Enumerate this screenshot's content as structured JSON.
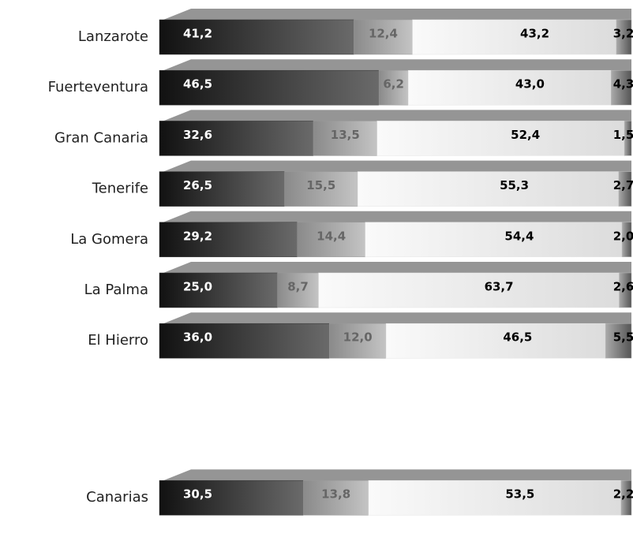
{
  "chart_data": {
    "type": "stacked-bar-horizontal",
    "categories": [
      "Lanzarote",
      "Fuerteventura",
      "Gran Canaria",
      "Tenerife",
      "La Gomera",
      "La Palma",
      "El Hierro",
      "Canarias"
    ],
    "xlim": [
      0,
      100
    ],
    "series": [
      {
        "color": "#3a3a3a",
        "values": [
          41.2,
          46.5,
          32.6,
          26.5,
          29.2,
          25.0,
          36.0,
          30.5
        ],
        "value_labels": [
          "41,2",
          "46,5",
          "32,6",
          "26,5",
          "29,2",
          "25,0",
          "36,0",
          "30,5"
        ]
      },
      {
        "color": "#9a9a9a",
        "values": [
          12.4,
          6.2,
          13.5,
          15.5,
          14.4,
          8.7,
          12.0,
          13.8
        ],
        "value_labels": [
          "12,4",
          "6,2",
          "13,5",
          "15,5",
          "14,4",
          "8,7",
          "12,0",
          "13,8"
        ]
      },
      {
        "color": "#e4e4e4",
        "values": [
          43.2,
          43.0,
          52.4,
          55.3,
          54.4,
          63.7,
          46.5,
          53.5
        ],
        "value_labels": [
          "43,2",
          "43,0",
          "52,4",
          "55,3",
          "54,4",
          "63,7",
          "46,5",
          "53,5"
        ]
      },
      {
        "color": "#bdbdbd",
        "values": [
          3.2,
          4.3,
          1.5,
          2.7,
          2.0,
          2.6,
          5.5,
          2.2
        ],
        "value_labels": [
          "3,2",
          "4,3",
          "1,5",
          "2,7",
          "2,0",
          "2,6",
          "5,5",
          "2,2"
        ]
      }
    ]
  }
}
